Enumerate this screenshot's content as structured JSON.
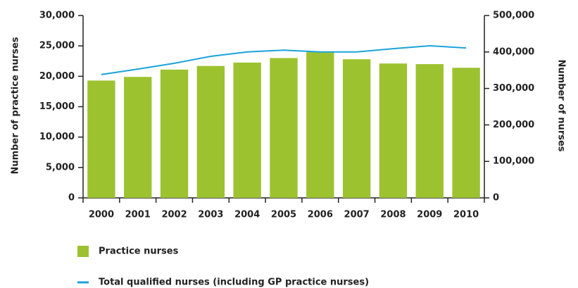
{
  "chart_data": {
    "type": "bar-line",
    "y_label": "Number of practice nurses",
    "y2_label": "Number of nurses",
    "categories": [
      "2000",
      "2001",
      "2002",
      "2003",
      "2004",
      "2005",
      "2006",
      "2007",
      "2008",
      "2009",
      "2010"
    ],
    "series": [
      {
        "name": "Practice nurses",
        "type": "bar",
        "color": "#9dc230",
        "values": [
          19300,
          19900,
          21100,
          21700,
          22250,
          23000,
          24000,
          22800,
          22100,
          22000,
          21400
        ]
      },
      {
        "name": "Total qualified nurses (including GP practice nurses)",
        "type": "line",
        "axis": "y2",
        "color": "#1ba3dc",
        "values": [
          338000,
          353000,
          369000,
          388000,
          400000,
          405000,
          400000,
          400000,
          409000,
          417000,
          411000
        ]
      }
    ],
    "ylim": [
      0,
      30000
    ],
    "yticks": [
      0,
      {
        "value": 5000,
        "label": "5,000"
      },
      {
        "value": 10000,
        "label": "10,000"
      },
      {
        "value": 15000,
        "label": "15,000"
      },
      {
        "value": 20000,
        "label": "20,000"
      },
      {
        "value": 25000,
        "label": "25,000"
      },
      {
        "value": 30000,
        "label": "30,000"
      }
    ],
    "y2lim": [
      0,
      500000
    ],
    "y2ticks": [
      0,
      {
        "value": 100000,
        "label": "100,000"
      },
      {
        "value": 200000,
        "label": "200,000"
      },
      {
        "value": 300000,
        "label": "300,000"
      },
      {
        "value": 400000,
        "label": "400,000"
      },
      {
        "value": 500000,
        "label": "500,000"
      }
    ],
    "grid": false
  }
}
